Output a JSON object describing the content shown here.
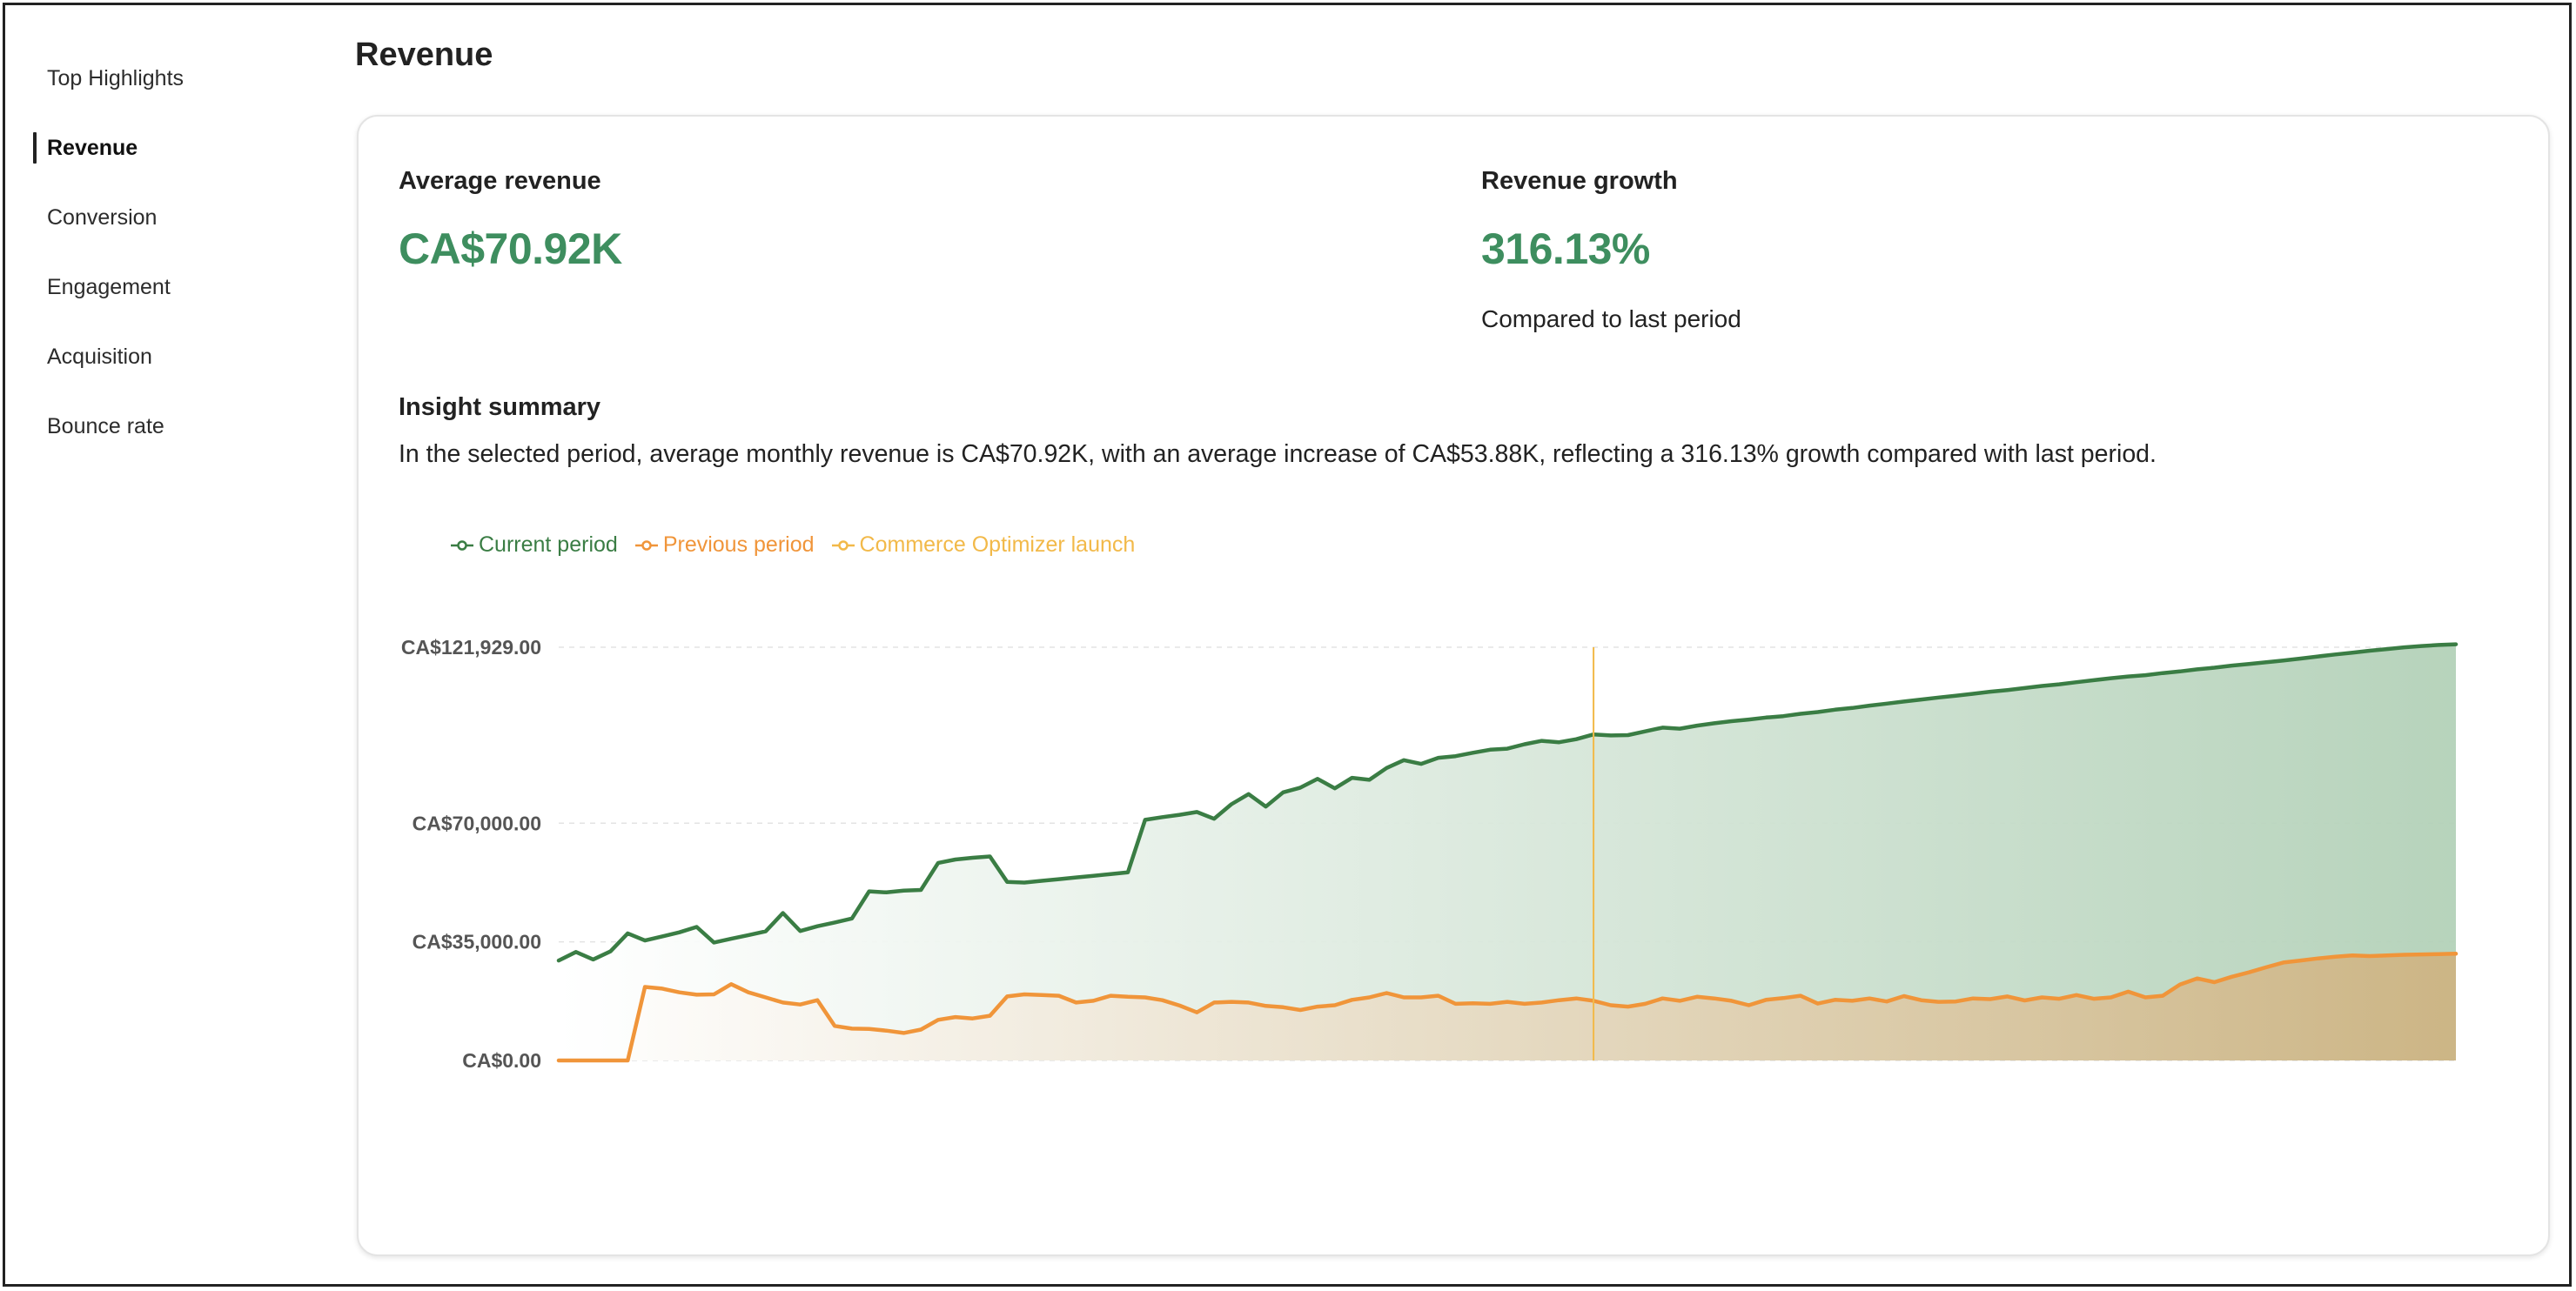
{
  "sidebar": {
    "items": [
      {
        "label": "Top Highlights",
        "active": false
      },
      {
        "label": "Revenue",
        "active": true
      },
      {
        "label": "Conversion",
        "active": false
      },
      {
        "label": "Engagement",
        "active": false
      },
      {
        "label": "Acquisition",
        "active": false
      },
      {
        "label": "Bounce rate",
        "active": false
      }
    ]
  },
  "page": {
    "title": "Revenue"
  },
  "metrics": {
    "average_revenue": {
      "label": "Average revenue",
      "value": "CA$70.92K"
    },
    "revenue_growth": {
      "label": "Revenue growth",
      "value": "316.13%",
      "sublabel": "Compared to last period"
    }
  },
  "insight": {
    "title": "Insight summary",
    "text": "In the selected period, average monthly revenue is CA$70.92K, with an average increase of CA$53.88K, reflecting a 316.13% growth compared with last period."
  },
  "colors": {
    "current": "#3a7d44",
    "previous": "#f0953a",
    "launch": "#f2b949",
    "accent_value": "#3e8e5f"
  },
  "chart_data": {
    "type": "area",
    "legend": [
      "Current period",
      "Previous period",
      "Commerce Optimizer launch"
    ],
    "legend_position": "top-left",
    "y_ticks": [
      "CA$0.00",
      "CA$35,000.00",
      "CA$70,000.00",
      "CA$121,929.00"
    ],
    "y_tick_values": [
      0,
      35000,
      70000,
      121929
    ],
    "ylim": [
      0,
      121929
    ],
    "grid": true,
    "launch_index": 60,
    "series": [
      {
        "name": "Current period",
        "values": [
          29500,
          32000,
          29800,
          32200,
          37500,
          35400,
          36600,
          37800,
          39400,
          34800,
          35900,
          37000,
          38100,
          43500,
          38200,
          39600,
          40700,
          41900,
          49900,
          49600,
          50100,
          50300,
          58300,
          59300,
          59800,
          60200,
          52700,
          52500,
          53000,
          53500,
          54000,
          54500,
          55000,
          55500,
          71000,
          71800,
          72500,
          73300,
          71300,
          75600,
          78600,
          74900,
          79100,
          80500,
          83100,
          80300,
          83400,
          82800,
          86300,
          88600,
          87500,
          89300,
          89800,
          90800,
          91700,
          92000,
          93300,
          94300,
          93900,
          94800,
          96200,
          95900,
          96000,
          97100,
          98200,
          97900,
          98800,
          99500,
          100100,
          100600,
          101200,
          101600,
          102300,
          102800,
          103500,
          104000,
          104700,
          105300,
          105900,
          106500,
          107100,
          107600,
          108200,
          108800,
          109300,
          109900,
          110500,
          111000,
          111600,
          112200,
          112800,
          113300,
          113700,
          114300,
          114800,
          115400,
          115900,
          116500,
          117000,
          117500,
          118000,
          118600,
          119200,
          119800,
          120300,
          120900,
          121400,
          121900,
          122300,
          122600,
          122800
        ]
      },
      {
        "name": "Previous period",
        "values": [
          0,
          0,
          0,
          0,
          0,
          21700,
          21200,
          20100,
          19400,
          19500,
          22500,
          20100,
          18600,
          17100,
          16500,
          17800,
          10200,
          9400,
          9300,
          8800,
          8100,
          9100,
          12000,
          12800,
          12400,
          13200,
          18900,
          19500,
          19300,
          19100,
          17100,
          17600,
          19100,
          18800,
          18600,
          17800,
          16200,
          14200,
          17100,
          17300,
          17100,
          16100,
          15700,
          14900,
          15900,
          16300,
          17900,
          18600,
          19900,
          18600,
          18600,
          19100,
          16700,
          16900,
          16700,
          17300,
          16700,
          17100,
          17800,
          18300,
          17600,
          16300,
          15900,
          16700,
          18300,
          17600,
          18800,
          18300,
          17600,
          16300,
          17900,
          18400,
          19100,
          16800,
          17900,
          17600,
          18300,
          17400,
          19000,
          17800,
          17300,
          17400,
          18300,
          18100,
          18900,
          17700,
          18600,
          18200,
          19300,
          18200,
          18600,
          20300,
          18600,
          19100,
          22400,
          24200,
          23100,
          24700,
          26000,
          27500,
          28900,
          29500,
          30100,
          30600,
          31000,
          30800,
          31000,
          31200,
          31300,
          31400,
          31500
        ]
      }
    ]
  }
}
